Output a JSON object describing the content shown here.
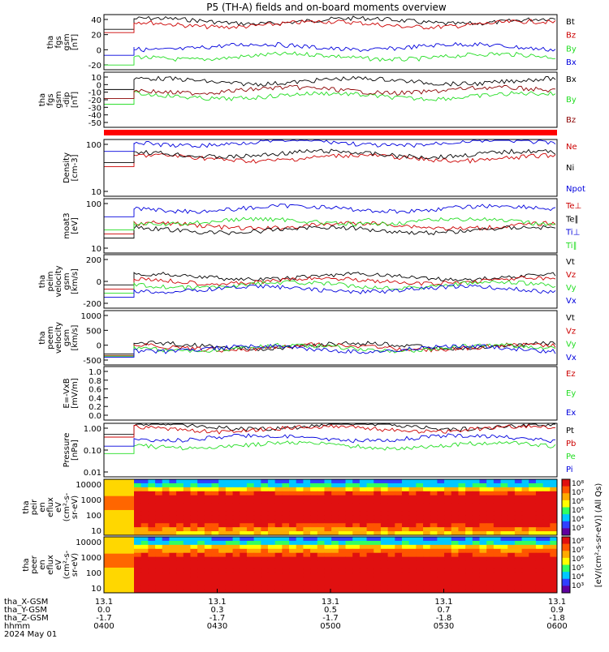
{
  "title": "P5 (TH-A) fields and on-board moments overview",
  "colors": {
    "black": "#000000",
    "red": "#cc0000",
    "green": "#22dd22",
    "blue": "#0000dd",
    "darkred": "#8b0000"
  },
  "chart_data": [
    {
      "type": "line",
      "ylabel": [
        "tha",
        "fgs",
        "gsm",
        "[nT]"
      ],
      "ylim": [
        -30,
        55
      ],
      "yticks": [
        "40",
        "20",
        "0",
        "-20"
      ],
      "series": [
        {
          "name": "Bt",
          "color": "black",
          "level": 45
        },
        {
          "name": "Bz",
          "color": "red",
          "level": 40
        },
        {
          "name": "By",
          "color": "green",
          "level": -10
        },
        {
          "name": "Bx",
          "color": "blue",
          "level": 5
        }
      ]
    },
    {
      "type": "line",
      "ylabel": [
        "tha",
        "fgs",
        "gsm",
        "-dip",
        "[nT]"
      ],
      "ylim": [
        -55,
        12
      ],
      "yticks": [
        "10",
        "0",
        "-10",
        "-20",
        "-30",
        "-40",
        "-50"
      ],
      "series": [
        {
          "name": "Bx",
          "color": "black",
          "level": 1
        },
        {
          "name": "By",
          "color": "green",
          "level": -17
        },
        {
          "name": "Bz",
          "color": "darkred",
          "level": -10
        }
      ]
    },
    {
      "type": "line",
      "ylabel": [
        "Density",
        "[cm-3]"
      ],
      "ylim": [
        1,
        120
      ],
      "log": true,
      "yticks": [
        "100",
        "10"
      ],
      "series": [
        {
          "name": "Ne",
          "color": "red",
          "level": 25
        },
        {
          "name": "Ni",
          "color": "black",
          "level": 35
        },
        {
          "name": "Npot",
          "color": "blue",
          "level": 90
        }
      ]
    },
    {
      "type": "line",
      "ylabel": [
        "moat3",
        "[eV]"
      ],
      "ylim": [
        9,
        400
      ],
      "log": true,
      "yticks": [
        "100",
        "10"
      ],
      "series": [
        {
          "name": "Te⊥",
          "color": "red",
          "level": 60
        },
        {
          "name": "Te∥",
          "color": "black",
          "level": 45
        },
        {
          "name": "Ti⊥",
          "color": "blue",
          "level": 200
        },
        {
          "name": "Ti∥",
          "color": "green",
          "level": 80
        }
      ]
    },
    {
      "type": "line",
      "ylabel": [
        "tha",
        "peim",
        "velocity",
        "gsm",
        "[km/s]"
      ],
      "ylim": [
        -300,
        350
      ],
      "yticks": [
        "200",
        "0",
        "-200"
      ],
      "series": [
        {
          "name": "Vt",
          "color": "black",
          "level": 80
        },
        {
          "name": "Vz",
          "color": "red",
          "level": 30
        },
        {
          "name": "Vy",
          "color": "green",
          "level": -20
        },
        {
          "name": "Vx",
          "color": "blue",
          "level": -70
        }
      ]
    },
    {
      "type": "line",
      "ylabel": [
        "tha",
        "peem",
        "velocity",
        "gsm",
        "[km/s]"
      ],
      "ylim": [
        -500,
        1100
      ],
      "yticks": [
        "1000",
        "500",
        "0",
        "-500"
      ],
      "series": [
        {
          "name": "Vt",
          "color": "black",
          "level": 60
        },
        {
          "name": "Vz",
          "color": "red",
          "level": 20
        },
        {
          "name": "Vy",
          "color": "green",
          "level": 0
        },
        {
          "name": "Vx",
          "color": "blue",
          "level": -30
        }
      ]
    },
    {
      "type": "line",
      "ylabel": [
        "E=-VxB",
        "[mV/m]"
      ],
      "ylim": [
        0,
        1
      ],
      "yticks": [
        "1.0",
        "0.8",
        "0.6",
        "0.4",
        "0.2",
        "0.0"
      ],
      "series": [
        {
          "name": "Ez",
          "color": "red",
          "level": null
        },
        {
          "name": "Ey",
          "color": "green",
          "level": null
        },
        {
          "name": "Ex",
          "color": "blue",
          "level": null
        }
      ]
    },
    {
      "type": "line",
      "ylabel": [
        "Pressure",
        "[nPa]"
      ],
      "ylim": [
        0.008,
        1.2
      ],
      "log": true,
      "yticks": [
        "1.00",
        "0.10",
        "0.01"
      ],
      "series": [
        {
          "name": "Pt",
          "color": "black",
          "level": 0.9
        },
        {
          "name": "Pb",
          "color": "red",
          "level": 0.7
        },
        {
          "name": "Pe",
          "color": "green",
          "level": 0.15
        },
        {
          "name": "Pi",
          "color": "blue",
          "level": 0.3
        }
      ]
    },
    {
      "type": "heatmap",
      "ylabel": [
        "tha",
        "peir",
        "en",
        "eflux",
        "eV",
        "(cm²-s-",
        "sr-eV)"
      ],
      "yticks": [
        "10000",
        "1000",
        "100",
        "10"
      ]
    },
    {
      "type": "heatmap",
      "ylabel": [
        "tha",
        "peer",
        "en",
        "eflux",
        "eV",
        "(cm²-s-",
        "sr-eV)"
      ],
      "yticks": [
        "10000",
        "1000",
        "100",
        "10"
      ]
    }
  ],
  "colorbar": {
    "ticks": [
      "10⁸",
      "10⁷",
      "10⁶",
      "10⁵",
      "10⁴",
      "10³"
    ],
    "label": "[eV/(cm²-s-sr-eV)] (All Qs)"
  },
  "xaxis": {
    "rows": [
      {
        "label": "tha_X-GSM",
        "values": [
          "13.1",
          "13.1",
          "13.1",
          "13.1",
          "13.1"
        ]
      },
      {
        "label": "tha_Y-GSM",
        "values": [
          "0.0",
          "0.3",
          "0.5",
          "0.7",
          "0.9"
        ]
      },
      {
        "label": "tha_Z-GSM",
        "values": [
          "-1.7",
          "-1.7",
          "-1.7",
          "-1.8",
          "-1.8"
        ]
      },
      {
        "label": "hhmm",
        "values": [
          "0400",
          "0430",
          "0500",
          "0530",
          "0600"
        ]
      }
    ],
    "date": "2024 May 01"
  }
}
